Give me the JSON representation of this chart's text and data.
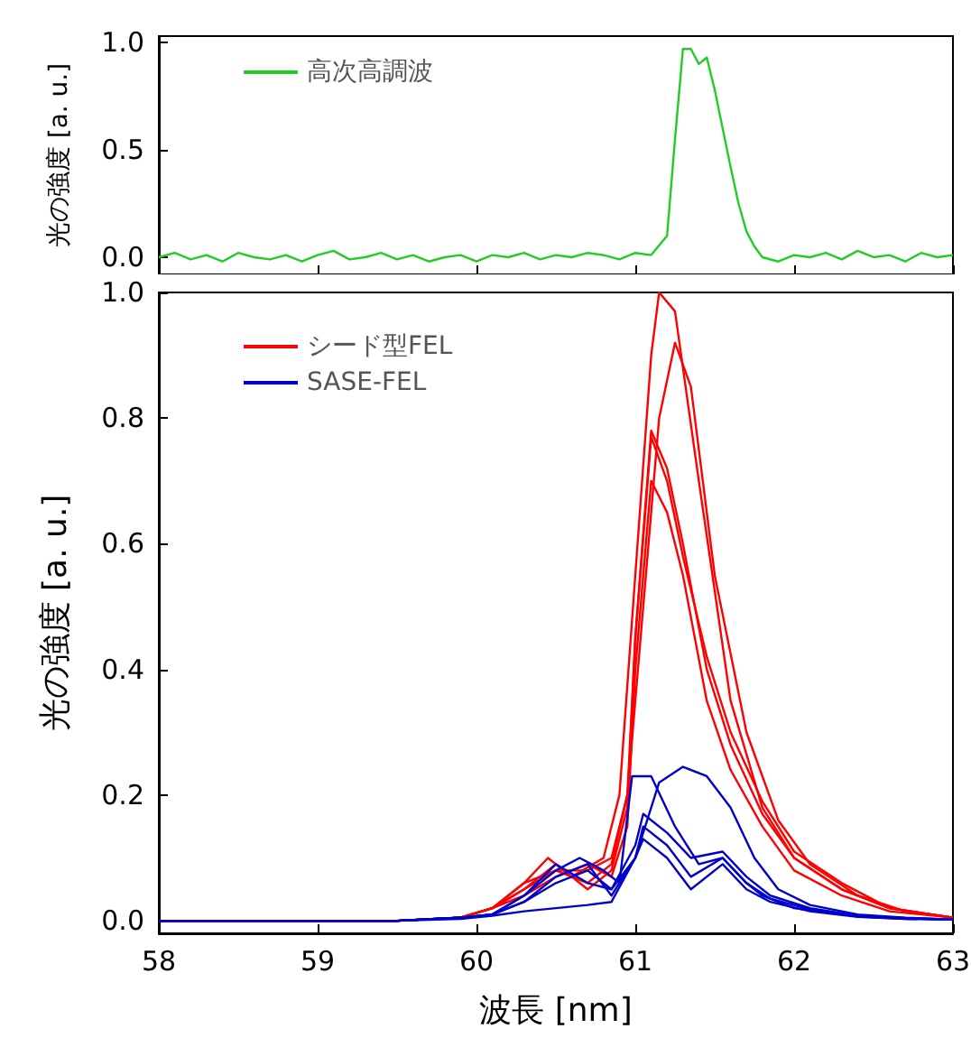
{
  "chart_data": [
    {
      "type": "line",
      "ylabel": "光の強度 [a. u.]",
      "xlim": [
        58,
        63
      ],
      "ylim": [
        -0.08,
        1.03
      ],
      "xticks": [
        58,
        59,
        60,
        61,
        62,
        63
      ],
      "yticks": [
        {
          "value": 0,
          "label": "0.0"
        },
        {
          "value": 0.5,
          "label": "0.5"
        },
        {
          "value": 1,
          "label": "1.0"
        }
      ],
      "tick_labels": "y",
      "legend": "top left",
      "grid": false,
      "series": [
        {
          "name": "高次高調波",
          "color": "#22cc22",
          "x": [
            58,
            58.1,
            58.2,
            58.3,
            58.4,
            58.5,
            58.6,
            58.7,
            58.8,
            58.9,
            59,
            59.1,
            59.2,
            59.3,
            59.4,
            59.5,
            59.6,
            59.7,
            59.8,
            59.9,
            60,
            60.1,
            60.2,
            60.3,
            60.4,
            60.5,
            60.6,
            60.7,
            60.8,
            60.9,
            61,
            61.1,
            61.2,
            61.25,
            61.3,
            61.35,
            61.4,
            61.45,
            61.5,
            61.55,
            61.6,
            61.65,
            61.7,
            61.75,
            61.8,
            61.9,
            62,
            62.1,
            62.2,
            62.3,
            62.4,
            62.5,
            62.6,
            62.7,
            62.8,
            62.9,
            63
          ],
          "values": [
            0.0,
            0.02,
            -0.01,
            0.01,
            -0.02,
            0.02,
            0.0,
            -0.01,
            0.01,
            -0.02,
            0.01,
            0.03,
            -0.01,
            0.0,
            0.02,
            -0.01,
            0.01,
            -0.02,
            0.0,
            0.01,
            -0.02,
            0.01,
            0.0,
            0.02,
            -0.01,
            0.01,
            0.0,
            0.02,
            0.01,
            -0.01,
            0.02,
            0.01,
            0.1,
            0.55,
            0.97,
            0.97,
            0.9,
            0.93,
            0.78,
            0.6,
            0.42,
            0.25,
            0.12,
            0.05,
            0.0,
            -0.02,
            0.01,
            0.0,
            0.02,
            -0.01,
            0.03,
            0.0,
            0.01,
            -0.02,
            0.02,
            0.0,
            0.01
          ]
        }
      ]
    },
    {
      "type": "line",
      "xlabel": "波長 [nm]",
      "ylabel": "光の強度 [a. u.]",
      "xlim": [
        58,
        63
      ],
      "ylim": [
        -0.02,
        1.0
      ],
      "xticks": [
        58,
        59,
        60,
        61,
        62,
        63
      ],
      "yticks": [
        {
          "value": 0,
          "label": "0.0"
        },
        {
          "value": 0.2,
          "label": "0.2"
        },
        {
          "value": 0.4,
          "label": "0.4"
        },
        {
          "value": 0.6,
          "label": "0.6"
        },
        {
          "value": 0.8,
          "label": "0.8"
        },
        {
          "value": 1,
          "label": "1.0"
        }
      ],
      "legend": "top left",
      "grid": false,
      "series": [
        {
          "name": "シード型FEL",
          "color": "#ff0000",
          "x": [
            58,
            59.5,
            59.9,
            60.1,
            60.3,
            60.45,
            60.6,
            60.8,
            60.9,
            61.0,
            61.1,
            61.15,
            61.25,
            61.4,
            61.6,
            61.8,
            62.0,
            62.3,
            62.6,
            63
          ],
          "values": [
            0,
            0,
            0.005,
            0.02,
            0.06,
            0.1,
            0.07,
            0.1,
            0.2,
            0.55,
            0.9,
            1.0,
            0.97,
            0.7,
            0.35,
            0.18,
            0.1,
            0.05,
            0.02,
            0.005
          ]
        },
        {
          "color": "#ff0000",
          "x": [
            58,
            59.5,
            59.9,
            60.1,
            60.3,
            60.5,
            60.7,
            60.85,
            60.95,
            61.05,
            61.15,
            61.25,
            61.35,
            61.5,
            61.7,
            61.9,
            62.1,
            62.4,
            62.7,
            63
          ],
          "values": [
            0,
            0,
            0.005,
            0.02,
            0.05,
            0.08,
            0.06,
            0.09,
            0.2,
            0.5,
            0.8,
            0.92,
            0.85,
            0.55,
            0.3,
            0.16,
            0.09,
            0.04,
            0.015,
            0.005
          ]
        },
        {
          "color": "#ff0000",
          "x": [
            58,
            59.5,
            59.9,
            60.1,
            60.3,
            60.5,
            60.7,
            60.85,
            60.95,
            61.0,
            61.1,
            61.2,
            61.3,
            61.45,
            61.6,
            61.8,
            62.0,
            62.3,
            62.6,
            63
          ],
          "values": [
            0,
            0,
            0.005,
            0.02,
            0.05,
            0.09,
            0.05,
            0.08,
            0.18,
            0.45,
            0.78,
            0.72,
            0.6,
            0.4,
            0.28,
            0.17,
            0.1,
            0.05,
            0.02,
            0.005
          ]
        },
        {
          "color": "#ff0000",
          "x": [
            58,
            59.5,
            59.9,
            60.1,
            60.3,
            60.5,
            60.7,
            60.85,
            60.95,
            61.0,
            61.1,
            61.2,
            61.3,
            61.45,
            61.6,
            61.8,
            62.0,
            62.3,
            62.6,
            63
          ],
          "values": [
            0,
            0,
            0.005,
            0.02,
            0.04,
            0.07,
            0.09,
            0.07,
            0.15,
            0.4,
            0.7,
            0.65,
            0.55,
            0.35,
            0.24,
            0.15,
            0.08,
            0.04,
            0.015,
            0.005
          ]
        },
        {
          "color": "#ff0000",
          "x": [
            58,
            59.5,
            59.9,
            60.1,
            60.3,
            60.5,
            60.7,
            60.85,
            60.95,
            61.0,
            61.1,
            61.2,
            61.3,
            61.45,
            61.6,
            61.8,
            62.0,
            62.3,
            62.6,
            63
          ],
          "values": [
            0,
            0,
            0.005,
            0.02,
            0.06,
            0.08,
            0.08,
            0.1,
            0.2,
            0.45,
            0.77,
            0.7,
            0.58,
            0.42,
            0.3,
            0.19,
            0.11,
            0.06,
            0.02,
            0.005
          ]
        },
        {
          "name": "SASE-FEL",
          "color": "#0000cc",
          "x": [
            58,
            59.5,
            59.9,
            60.1,
            60.3,
            60.5,
            60.65,
            60.8,
            60.9,
            60.98,
            61.1,
            61.25,
            61.4,
            61.55,
            61.7,
            61.8,
            62.0,
            62.3,
            62.6,
            63
          ],
          "values": [
            0,
            0,
            0.005,
            0.01,
            0.04,
            0.08,
            0.1,
            0.08,
            0.06,
            0.23,
            0.23,
            0.15,
            0.09,
            0.1,
            0.06,
            0.04,
            0.02,
            0.01,
            0.005,
            0.002
          ]
        },
        {
          "color": "#0000cc",
          "x": [
            58,
            59.5,
            59.9,
            60.1,
            60.3,
            60.5,
            60.7,
            60.85,
            61.0,
            61.15,
            61.3,
            61.45,
            61.6,
            61.75,
            61.9,
            62.1,
            62.4,
            62.7,
            63
          ],
          "values": [
            0,
            0,
            0.005,
            0.01,
            0.03,
            0.06,
            0.08,
            0.05,
            0.1,
            0.22,
            0.245,
            0.23,
            0.18,
            0.1,
            0.05,
            0.025,
            0.01,
            0.005,
            0.002
          ]
        },
        {
          "color": "#0000cc",
          "x": [
            58,
            59.5,
            59.9,
            60.1,
            60.3,
            60.5,
            60.7,
            60.85,
            61.0,
            61.05,
            61.2,
            61.35,
            61.55,
            61.7,
            61.85,
            62.1,
            62.4,
            62.7,
            63
          ],
          "values": [
            0,
            0,
            0.005,
            0.01,
            0.04,
            0.09,
            0.06,
            0.05,
            0.12,
            0.17,
            0.14,
            0.1,
            0.11,
            0.07,
            0.04,
            0.02,
            0.008,
            0.004,
            0.002
          ]
        },
        {
          "color": "#0000cc",
          "x": [
            58,
            59.5,
            59.9,
            60.1,
            60.3,
            60.5,
            60.7,
            60.85,
            61.0,
            61.05,
            61.2,
            61.35,
            61.55,
            61.7,
            61.85,
            62.1,
            62.4,
            62.7,
            63
          ],
          "values": [
            0,
            0,
            0.005,
            0.01,
            0.03,
            0.07,
            0.09,
            0.04,
            0.1,
            0.15,
            0.12,
            0.07,
            0.1,
            0.06,
            0.035,
            0.018,
            0.007,
            0.003,
            0.002
          ]
        },
        {
          "color": "#0000cc",
          "x": [
            58,
            59.5,
            59.9,
            60.1,
            60.3,
            60.5,
            60.7,
            60.85,
            61.0,
            61.05,
            61.2,
            61.35,
            61.55,
            61.7,
            61.85,
            62.1,
            62.4,
            62.7,
            63
          ],
          "values": [
            0,
            0,
            0.003,
            0.008,
            0.015,
            0.02,
            0.025,
            0.03,
            0.1,
            0.13,
            0.1,
            0.05,
            0.09,
            0.05,
            0.03,
            0.015,
            0.006,
            0.003,
            0.002
          ]
        }
      ]
    }
  ]
}
